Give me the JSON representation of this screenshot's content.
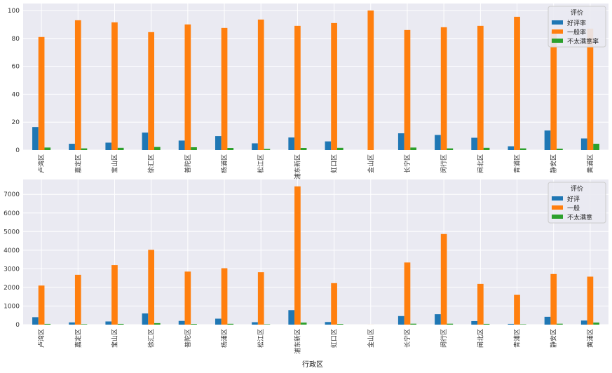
{
  "chart_data": [
    {
      "type": "bar",
      "categories": [
        "卢湾区",
        "嘉定区",
        "宝山区",
        "徐汇区",
        "普陀区",
        "杨浦区",
        "松江区",
        "浦东新区",
        "虹口区",
        "金山区",
        "长宁区",
        "闵行区",
        "闸北区",
        "青浦区",
        "静安区",
        "黄浦区"
      ],
      "series": [
        {
          "name": "好评率",
          "color": "#1f77b4",
          "values": [
            16.5,
            4.5,
            5.3,
            12.5,
            6.8,
            10.0,
            4.8,
            9.0,
            6.2,
            0,
            12.0,
            10.8,
            8.8,
            2.7,
            14.0,
            8.3
          ]
        },
        {
          "name": "一般率",
          "color": "#ff7f0e",
          "values": [
            81.0,
            93.0,
            91.5,
            84.5,
            90.0,
            87.5,
            93.5,
            89.0,
            91.0,
            100.0,
            86.0,
            88.0,
            89.0,
            95.5,
            85.0,
            87.0
          ]
        },
        {
          "name": "不太满意率",
          "color": "#2ca02c",
          "values": [
            1.8,
            1.2,
            1.6,
            2.2,
            2.0,
            1.5,
            0.8,
            1.5,
            1.6,
            0,
            1.8,
            1.2,
            1.6,
            1.2,
            1.0,
            4.5
          ]
        }
      ],
      "legend_title": "评价",
      "legend_position": "top-right",
      "ylim": [
        0,
        105
      ],
      "yticks": [
        0,
        20,
        40,
        60,
        80,
        100
      ],
      "grid": true,
      "xlabel": "",
      "ylabel": ""
    },
    {
      "type": "bar",
      "categories": [
        "卢湾区",
        "嘉定区",
        "宝山区",
        "徐汇区",
        "普陀区",
        "杨浦区",
        "松江区",
        "浦东新区",
        "虹口区",
        "金山区",
        "长宁区",
        "闵行区",
        "闸北区",
        "青浦区",
        "静安区",
        "黄浦区"
      ],
      "series": [
        {
          "name": "好评",
          "color": "#1f77b4",
          "values": [
            400,
            120,
            170,
            600,
            200,
            320,
            130,
            780,
            140,
            0,
            460,
            560,
            190,
            40,
            420,
            220
          ]
        },
        {
          "name": "一般",
          "color": "#ff7f0e",
          "values": [
            2100,
            2680,
            3200,
            4020,
            2850,
            3030,
            2820,
            7430,
            2230,
            2,
            3340,
            4870,
            2190,
            1600,
            2720,
            2580
          ]
        },
        {
          "name": "不太满意",
          "color": "#2ca02c",
          "values": [
            40,
            25,
            40,
            80,
            35,
            45,
            20,
            110,
            35,
            0,
            50,
            50,
            40,
            20,
            50,
            110
          ]
        }
      ],
      "legend_title": "评价",
      "legend_position": "top-right",
      "ylim": [
        0,
        7800
      ],
      "yticks": [
        0,
        1000,
        2000,
        3000,
        4000,
        5000,
        6000,
        7000
      ],
      "grid": true,
      "xlabel": "行政区",
      "ylabel": ""
    }
  ]
}
